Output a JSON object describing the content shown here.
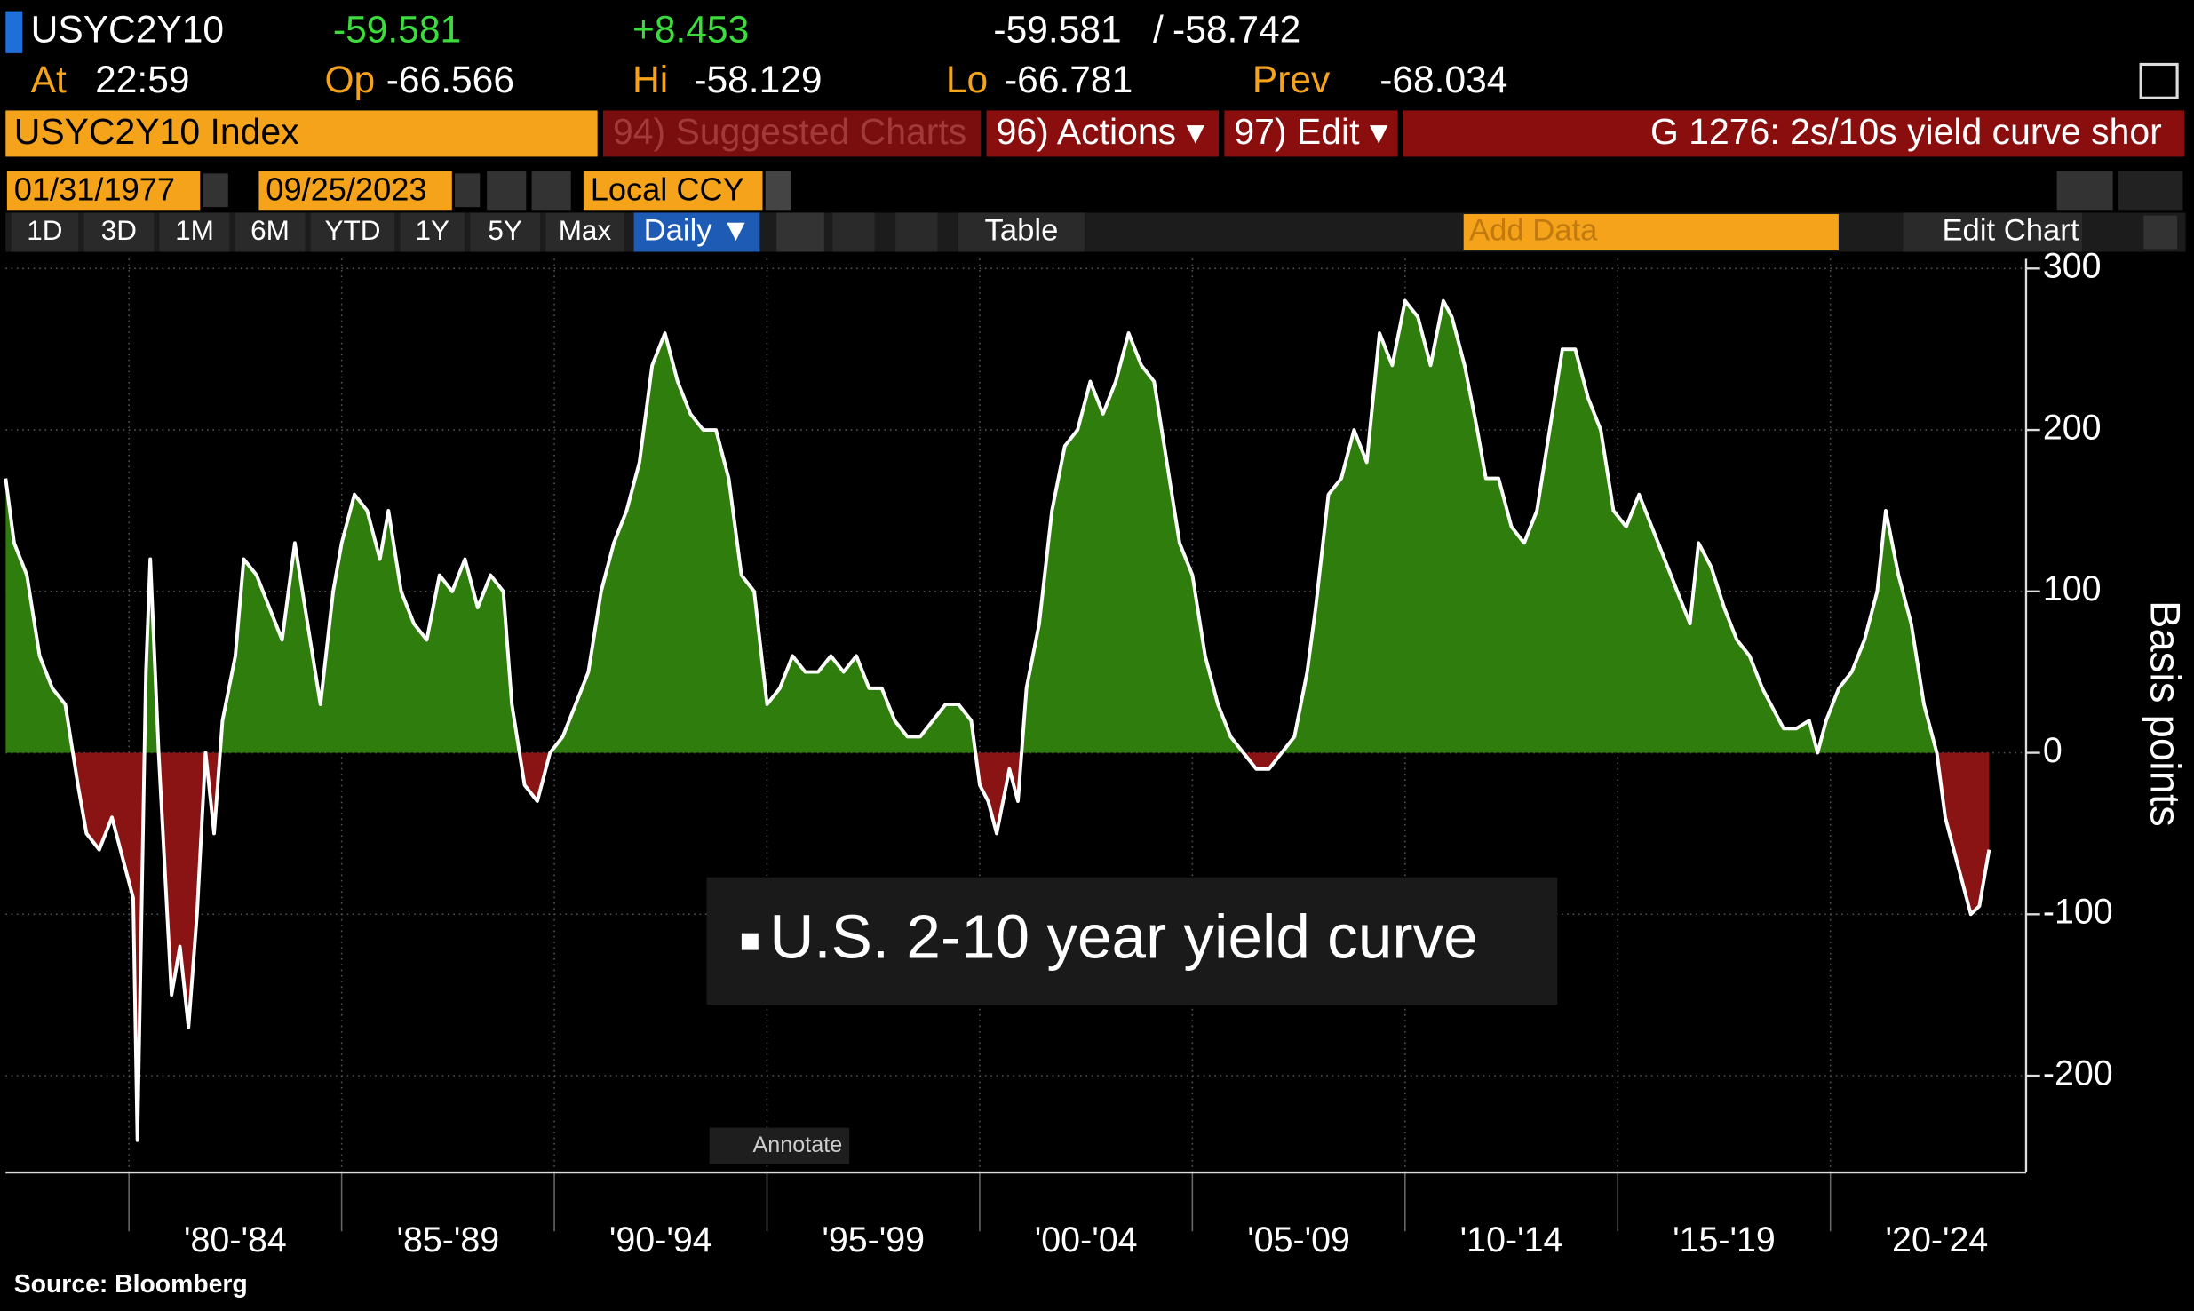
{
  "header": {
    "ticker": "USYC2Y10",
    "last": "-59.581",
    "change": "+8.453",
    "bid": "-59.581",
    "slash": "/",
    "ask": "-58.742",
    "at_label": "At",
    "time": "22:59",
    "open_label": "Op",
    "open": "-66.566",
    "high_label": "Hi",
    "high": "-58.129",
    "low_label": "Lo",
    "low": "-66.781",
    "prev_label": "Prev",
    "prev": "-68.034"
  },
  "toolbar": {
    "security": "USYC2Y10 Index",
    "suggested": "94) Suggested Charts",
    "actions": "96) Actions ▾",
    "edit": "97) Edit ▾",
    "chart_name": "G 1276: 2s/10s yield curve shor",
    "start_date": "01/31/1977",
    "end_date": "09/25/2023",
    "currency": "Local CCY",
    "periods": [
      "1D",
      "3D",
      "1M",
      "6M",
      "YTD",
      "1Y",
      "5Y",
      "Max"
    ],
    "frequency": "Daily ▼",
    "table": "Table",
    "add_data": "Add Data",
    "edit_chart": "Edit Chart",
    "annotate": "Annotate"
  },
  "chart_data": {
    "type": "area",
    "y_label": "Basis points",
    "source": "Source: Bloomberg",
    "xlim": [
      1977.1,
      2024.6
    ],
    "xticks": [
      {
        "value": 1980,
        "label": "'80-'84"
      },
      {
        "value": 1985,
        "label": "'85-'89"
      },
      {
        "value": 1990,
        "label": "'90-'94"
      },
      {
        "value": 1995,
        "label": "'95-'99"
      },
      {
        "value": 2000,
        "label": "'00-'04"
      },
      {
        "value": 2005,
        "label": "'05-'09"
      },
      {
        "value": 2010,
        "label": "'10-'14"
      },
      {
        "value": 2015,
        "label": "'15-'19"
      },
      {
        "value": 2020,
        "label": "'20-'24"
      }
    ],
    "ylim": [
      -260,
      306
    ],
    "yticks": [
      -200,
      -100,
      0,
      100,
      200,
      300
    ],
    "grid": true,
    "positive_fill": "#2f7d0c",
    "negative_fill": "#8a1414",
    "x": [
      1977.1,
      1977.3,
      1977.6,
      1977.9,
      1978.2,
      1978.5,
      1978.8,
      1979.0,
      1979.3,
      1979.6,
      1979.9,
      1980.1,
      1980.2,
      1980.4,
      1980.5,
      1980.7,
      1980.9,
      1981.0,
      1981.2,
      1981.4,
      1981.6,
      1981.8,
      1982.0,
      1982.2,
      1982.5,
      1982.7,
      1983.0,
      1983.3,
      1983.6,
      1983.9,
      1984.2,
      1984.5,
      1984.8,
      1985.0,
      1985.3,
      1985.6,
      1985.9,
      1986.1,
      1986.4,
      1986.7,
      1987.0,
      1987.3,
      1987.6,
      1987.9,
      1988.2,
      1988.5,
      1988.8,
      1989.0,
      1989.3,
      1989.6,
      1989.9,
      1990.2,
      1990.5,
      1990.8,
      1991.1,
      1991.4,
      1991.7,
      1992.0,
      1992.3,
      1992.6,
      1992.9,
      1993.2,
      1993.5,
      1993.8,
      1994.1,
      1994.4,
      1994.7,
      1995.0,
      1995.3,
      1995.6,
      1995.9,
      1996.2,
      1996.5,
      1996.8,
      1997.1,
      1997.4,
      1997.7,
      1998.0,
      1998.3,
      1998.6,
      1998.9,
      1999.2,
      1999.5,
      1999.8,
      2000.0,
      2000.2,
      2000.4,
      2000.7,
      2000.9,
      2001.1,
      2001.4,
      2001.7,
      2002.0,
      2002.3,
      2002.6,
      2002.9,
      2003.2,
      2003.5,
      2003.8,
      2004.1,
      2004.4,
      2004.7,
      2005.0,
      2005.3,
      2005.6,
      2005.9,
      2006.2,
      2006.5,
      2006.8,
      2007.1,
      2007.4,
      2007.7,
      2007.9,
      2008.2,
      2008.5,
      2008.8,
      2009.1,
      2009.4,
      2009.7,
      2010.0,
      2010.3,
      2010.6,
      2010.9,
      2011.1,
      2011.4,
      2011.7,
      2011.9,
      2012.2,
      2012.5,
      2012.8,
      2013.1,
      2013.4,
      2013.7,
      2014.0,
      2014.3,
      2014.6,
      2014.9,
      2015.2,
      2015.5,
      2015.8,
      2016.1,
      2016.4,
      2016.7,
      2016.9,
      2017.2,
      2017.5,
      2017.8,
      2018.1,
      2018.4,
      2018.7,
      2018.9,
      2019.2,
      2019.5,
      2019.7,
      2019.9,
      2020.2,
      2020.5,
      2020.8,
      2021.1,
      2021.3,
      2021.6,
      2021.9,
      2022.2,
      2022.5,
      2022.7,
      2022.9,
      2023.1,
      2023.3,
      2023.5,
      2023.73
    ],
    "series": [
      {
        "name": "U.S. 2-10 year yield curve",
        "color": "#ffffff",
        "values": [
          170,
          130,
          110,
          60,
          40,
          30,
          -20,
          -50,
          -60,
          -40,
          -70,
          -90,
          -240,
          50,
          120,
          0,
          -100,
          -150,
          -120,
          -170,
          -100,
          0,
          -50,
          20,
          60,
          120,
          110,
          90,
          70,
          130,
          80,
          30,
          100,
          130,
          160,
          150,
          120,
          150,
          100,
          80,
          70,
          110,
          100,
          120,
          90,
          110,
          100,
          30,
          -20,
          -30,
          0,
          10,
          30,
          50,
          100,
          130,
          150,
          180,
          240,
          260,
          230,
          210,
          200,
          200,
          170,
          110,
          100,
          30,
          40,
          60,
          50,
          50,
          60,
          50,
          60,
          40,
          40,
          20,
          10,
          10,
          20,
          30,
          30,
          20,
          -20,
          -30,
          -50,
          -10,
          -30,
          40,
          80,
          150,
          190,
          200,
          230,
          210,
          230,
          260,
          240,
          230,
          180,
          130,
          110,
          60,
          30,
          10,
          0,
          -10,
          -10,
          0,
          10,
          50,
          90,
          160,
          170,
          200,
          180,
          260,
          240,
          280,
          270,
          240,
          280,
          270,
          240,
          200,
          170,
          170,
          140,
          130,
          150,
          200,
          250,
          250,
          220,
          200,
          150,
          140,
          160,
          140,
          120,
          100,
          80,
          130,
          115,
          90,
          70,
          60,
          40,
          25,
          15,
          15,
          20,
          0,
          20,
          40,
          50,
          70,
          100,
          150,
          110,
          80,
          30,
          0,
          -40,
          -60,
          -80,
          -100,
          -95,
          -60
        ]
      }
    ]
  }
}
